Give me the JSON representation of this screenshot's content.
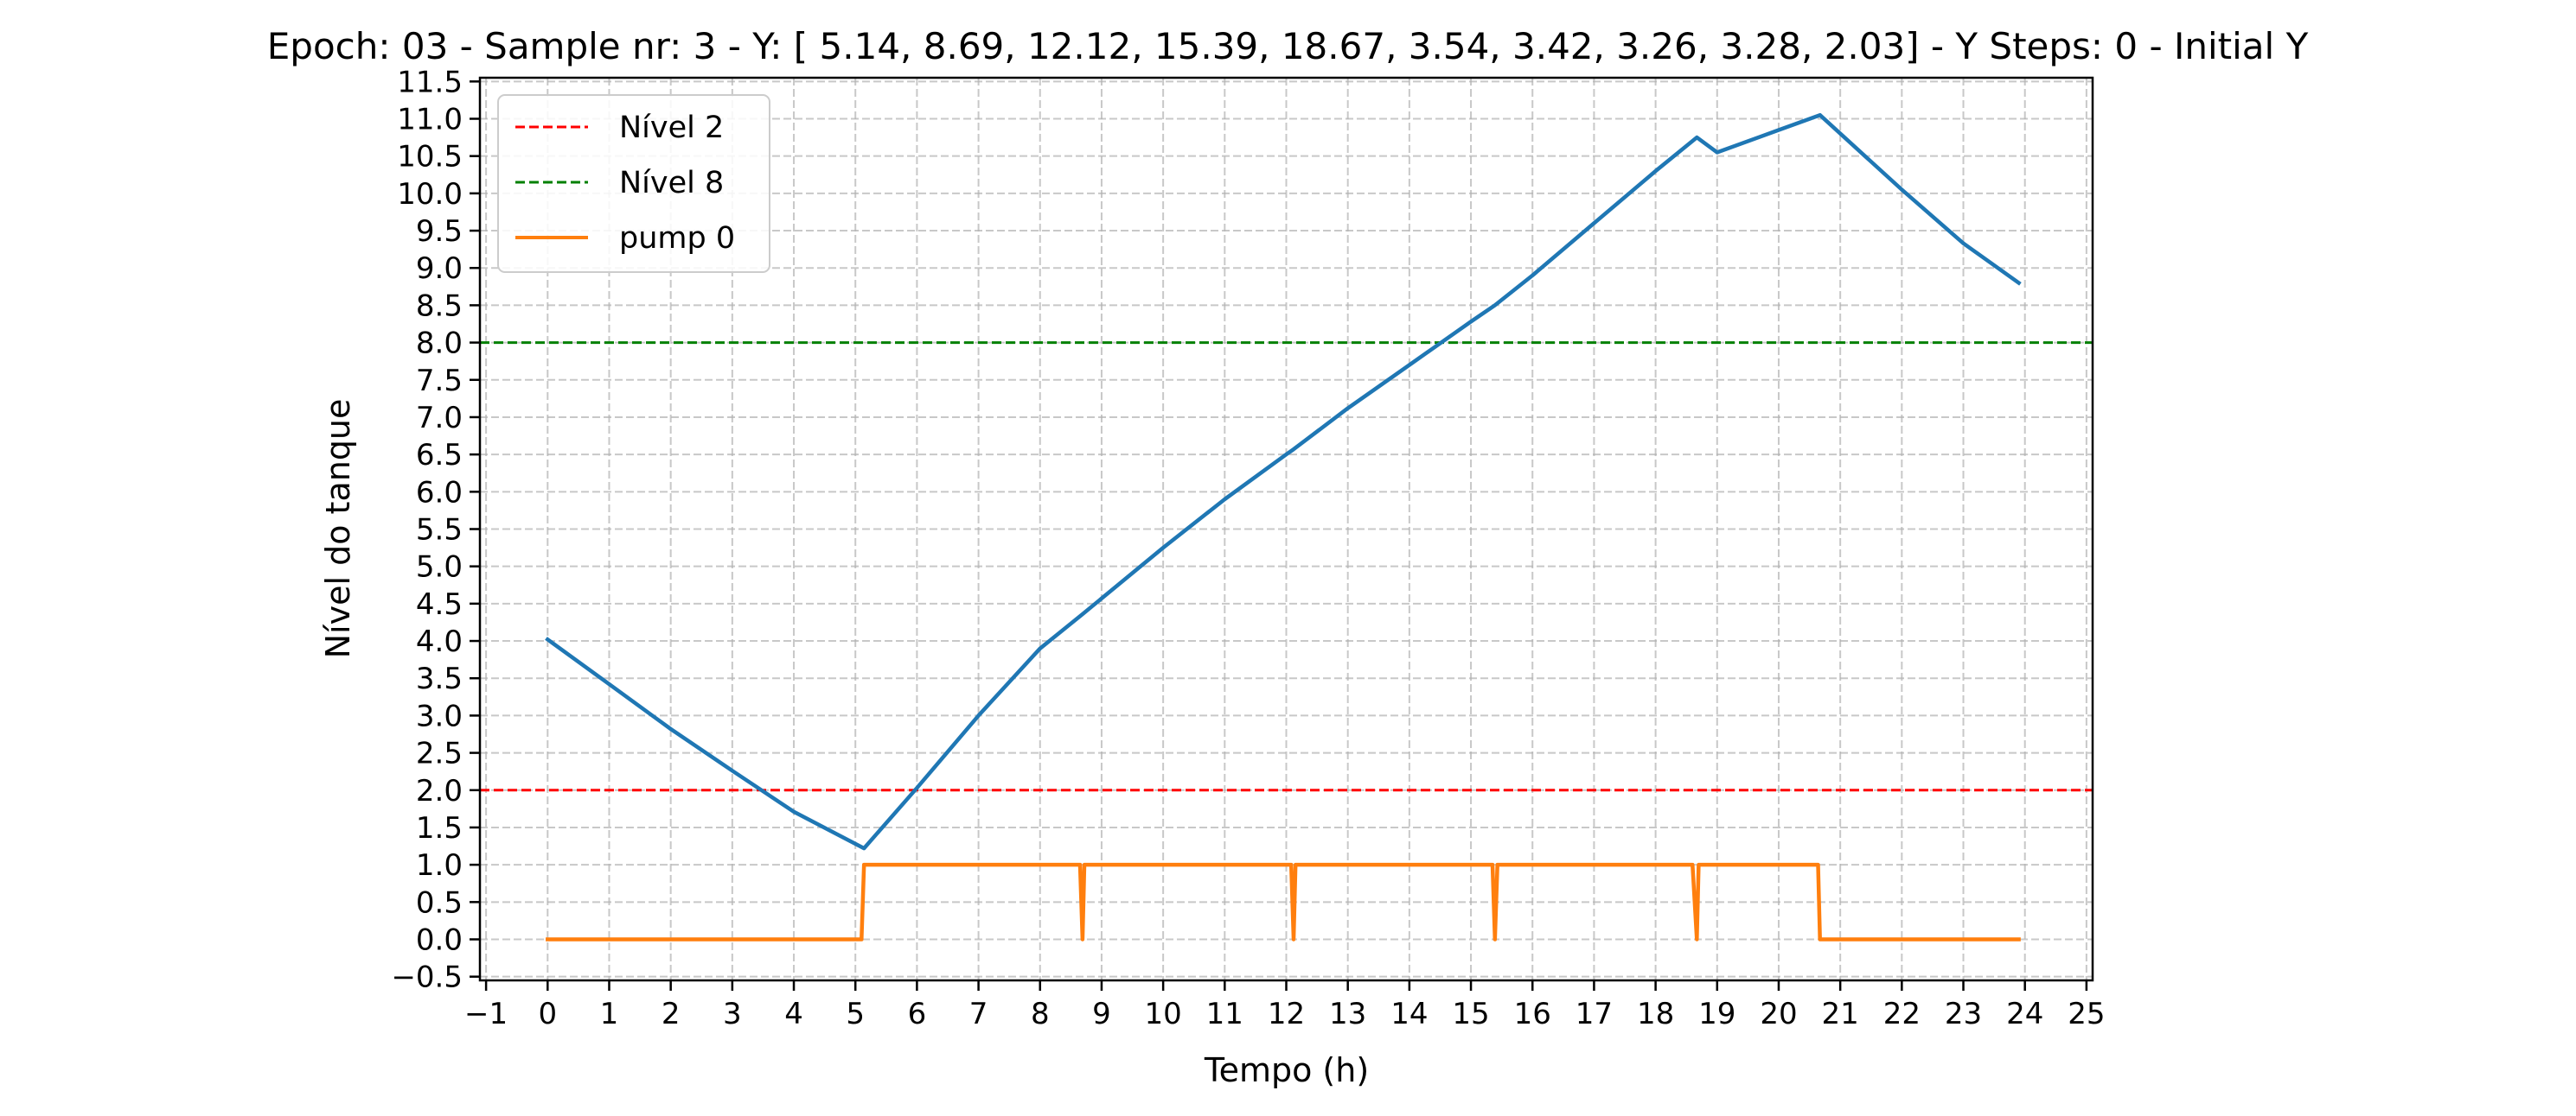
{
  "chart_data": {
    "type": "line",
    "title": "Epoch: 03 - Sample nr: 3 - Y: [ 5.14,  8.69, 12.12, 15.39, 18.67,  3.54,  3.42,  3.26,  3.28,  2.03] - Y Steps: 0  - Initial Y",
    "xlabel": "Tempo (h)",
    "ylabel": "Nível do tanque",
    "xlim": [
      -1.1,
      25.1
    ],
    "ylim": [
      -0.55,
      11.55
    ],
    "xticks": [
      -1,
      0,
      1,
      2,
      3,
      4,
      5,
      6,
      7,
      8,
      9,
      10,
      11,
      12,
      13,
      14,
      15,
      16,
      17,
      18,
      19,
      20,
      21,
      22,
      23,
      24,
      25
    ],
    "xtick_labels": [
      "−1",
      "0",
      "1",
      "2",
      "3",
      "4",
      "5",
      "6",
      "7",
      "8",
      "9",
      "10",
      "11",
      "12",
      "13",
      "14",
      "15",
      "16",
      "17",
      "18",
      "19",
      "20",
      "21",
      "22",
      "23",
      "24",
      "25"
    ],
    "yticks": [
      -0.5,
      0.0,
      0.5,
      1.0,
      1.5,
      2.0,
      2.5,
      3.0,
      3.5,
      4.0,
      4.5,
      5.0,
      5.5,
      6.0,
      6.5,
      7.0,
      7.5,
      8.0,
      8.5,
      9.0,
      9.5,
      10.0,
      10.5,
      11.0,
      11.5
    ],
    "ytick_labels": [
      "−0.5",
      "0.0",
      "0.5",
      "1.0",
      "1.5",
      "2.0",
      "2.5",
      "3.0",
      "3.5",
      "4.0",
      "4.5",
      "5.0",
      "5.5",
      "6.0",
      "6.5",
      "7.0",
      "7.5",
      "8.0",
      "8.5",
      "9.0",
      "9.5",
      "10.0",
      "10.5",
      "11.0",
      "11.5"
    ],
    "grid": true,
    "legend_position": "top-left",
    "series": [
      {
        "name": "Nível 2",
        "style": "dashed",
        "color": "#ff0000",
        "hline": 2.0
      },
      {
        "name": "Nível 8",
        "style": "dashed",
        "color": "#008000",
        "hline": 8.0
      },
      {
        "name": "",
        "style": "solid",
        "color": "#1f77b4",
        "x": [
          0,
          1,
          2,
          3,
          4,
          5.14,
          6,
          7,
          8,
          8.69,
          10,
          11,
          12,
          12.12,
          13,
          14,
          15,
          15.39,
          16,
          17,
          18,
          18.67,
          19,
          20,
          20.67,
          22,
          23,
          23.9
        ],
        "y": [
          4.02,
          3.42,
          2.82,
          2.26,
          1.71,
          1.22,
          2.03,
          3.0,
          3.9,
          4.36,
          5.25,
          5.9,
          6.5,
          6.57,
          7.12,
          7.7,
          8.28,
          8.5,
          8.9,
          9.6,
          10.3,
          10.75,
          10.55,
          10.85,
          11.05,
          10.05,
          9.33,
          8.8
        ]
      },
      {
        "name": "pump 0",
        "style": "solid",
        "color": "#ff7f0e",
        "x": [
          0,
          5.1,
          5.14,
          8.65,
          8.69,
          8.72,
          12.08,
          12.12,
          12.15,
          15.35,
          15.39,
          15.43,
          18.6,
          18.67,
          18.7,
          20.64,
          20.67,
          23.9
        ],
        "y": [
          0,
          0,
          1,
          1,
          0,
          1,
          1,
          0,
          1,
          1,
          0,
          1,
          1,
          0,
          1,
          1,
          0,
          0
        ]
      }
    ]
  }
}
